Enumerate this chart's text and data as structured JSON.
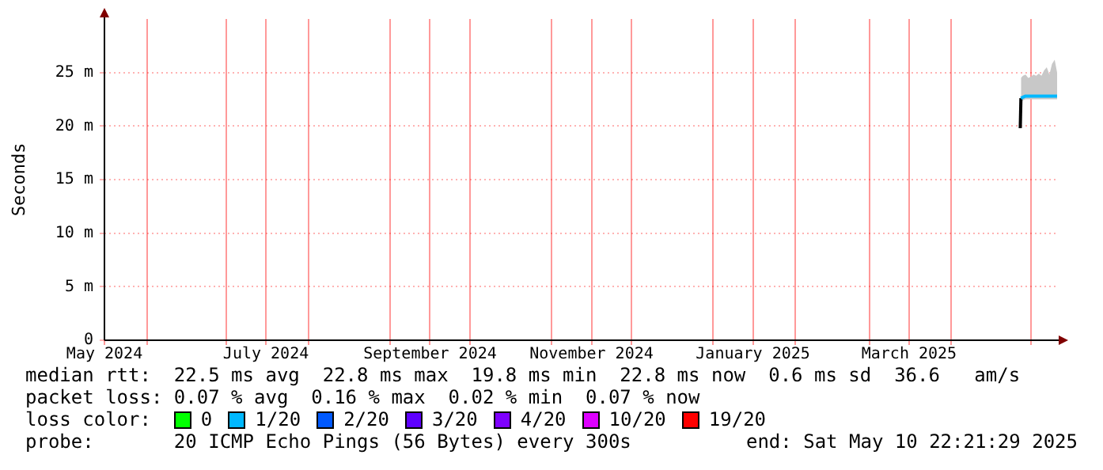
{
  "chart_data": {
    "type": "line",
    "ylabel": "Seconds",
    "xlim": [
      "2024-05-16",
      "2025-05-10T22:00"
    ],
    "xticks": [
      {
        "value": "2024-05-16",
        "label": "May 2024"
      },
      {
        "value": "2024-06-01",
        "label": null
      },
      {
        "value": "2024-07-01",
        "label": null
      },
      {
        "value": "2024-07-16",
        "label": "July 2024"
      },
      {
        "value": "2024-08-01",
        "label": null
      },
      {
        "value": "2024-09-01",
        "label": null
      },
      {
        "value": "2024-09-16",
        "label": "September 2024"
      },
      {
        "value": "2024-10-01",
        "label": null
      },
      {
        "value": "2024-11-01",
        "label": null
      },
      {
        "value": "2024-11-16",
        "label": "November 2024"
      },
      {
        "value": "2024-12-01",
        "label": null
      },
      {
        "value": "2025-01-01",
        "label": null
      },
      {
        "value": "2025-01-16",
        "label": "January 2025"
      },
      {
        "value": "2025-02-01",
        "label": null
      },
      {
        "value": "2025-03-01",
        "label": null
      },
      {
        "value": "2025-03-16",
        "label": "March 2025"
      },
      {
        "value": "2025-04-01",
        "label": null
      },
      {
        "value": "2025-05-01",
        "label": null
      }
    ],
    "ylim": [
      0,
      30
    ],
    "yticks": [
      0,
      {
        "value": 5,
        "label": "5 m"
      },
      {
        "value": 10,
        "label": "10 m"
      },
      {
        "value": 15,
        "label": "15 m"
      },
      {
        "value": 20,
        "label": "20 m"
      },
      {
        "value": 25,
        "label": "25 m"
      }
    ],
    "grid": true,
    "legend": "bottom",
    "legend_title": "loss color:",
    "marker": "none",
    "line_style": "solid",
    "series": [
      {
        "name": "0",
        "color": "#00ff00"
      },
      {
        "name": "1/20",
        "color": "#00b8ff",
        "x": [
          "2025-04-27T06:00",
          "2025-04-28",
          "2025-04-29",
          "2025-04-30",
          "2025-05-01",
          "2025-05-02",
          "2025-05-03",
          "2025-05-04",
          "2025-05-05",
          "2025-05-06",
          "2025-05-07",
          "2025-05-08",
          "2025-05-09",
          "2025-05-10",
          "2025-05-10T22:00"
        ],
        "values": [
          22.6,
          22.7,
          22.8,
          22.8,
          22.8,
          22.8,
          22.8,
          22.8,
          22.8,
          22.8,
          22.8,
          22.8,
          22.8,
          22.8,
          22.8
        ],
        "lower": [
          22.3,
          22.4,
          22.5,
          22.5,
          22.5,
          22.5,
          22.5,
          22.5,
          22.5,
          22.5,
          22.5,
          22.5,
          22.5,
          22.5,
          22.5
        ],
        "upper": [
          24.5,
          24.7,
          24.8,
          24.5,
          24.6,
          24.8,
          24.7,
          24.9,
          24.7,
          25.2,
          25.5,
          24.8,
          25.8,
          26.2,
          25
        ]
      },
      {
        "name": "2/20",
        "color": "#0059ff"
      },
      {
        "name": "3/20",
        "color": "#5e00ff"
      },
      {
        "name": "4/20",
        "color": "#7e00ff"
      },
      {
        "name": "10/20",
        "color": "#dd00ff"
      },
      {
        "name": "19/20",
        "color": "#ff0000"
      },
      {
        "color": "#000000",
        "x": [
          "2025-04-27T00:00",
          "2025-04-27T06:00"
        ],
        "values": [
          19.8,
          22.6
        ]
      }
    ],
    "annotations": [
      "median rtt:  22.5 ms avg  22.8 ms max  19.8 ms min  22.8 ms now  0.6 ms sd  36.6   am/s",
      "packet loss: 0.07 % avg  0.16 % max  0.02 % min  0.07 % now",
      "probe:       20 ICMP Echo Pings (56 Bytes) every 300s",
      "end: Sat May 10 22:21:29 2025"
    ]
  }
}
